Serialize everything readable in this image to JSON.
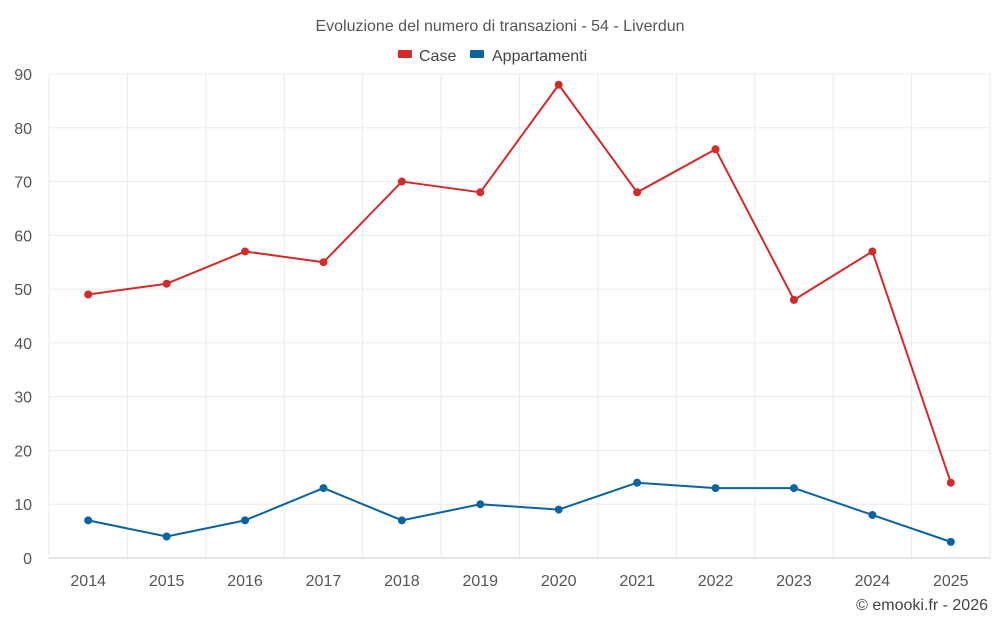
{
  "chart_data": {
    "type": "line",
    "title": "Evoluzione del numero di transazioni - 54 - Liverdun",
    "categories": [
      "2014",
      "2015",
      "2016",
      "2017",
      "2018",
      "2019",
      "2020",
      "2021",
      "2022",
      "2023",
      "2024",
      "2025"
    ],
    "series": [
      {
        "name": "Case",
        "color": "#d32a2a",
        "values": [
          49,
          51,
          57,
          55,
          70,
          68,
          88,
          68,
          76,
          48,
          57,
          14
        ]
      },
      {
        "name": "Appartamenti",
        "color": "#0b63a0",
        "values": [
          7,
          4,
          7,
          13,
          7,
          10,
          9,
          14,
          13,
          13,
          8,
          3
        ]
      }
    ],
    "ylim": [
      0,
      90
    ],
    "yticks": [
      0,
      10,
      20,
      30,
      40,
      50,
      60,
      70,
      80,
      90
    ],
    "xlabel": "",
    "ylabel": "",
    "grid": true,
    "legend_position": "top-center"
  },
  "credit": "© emooki.fr - 2026"
}
